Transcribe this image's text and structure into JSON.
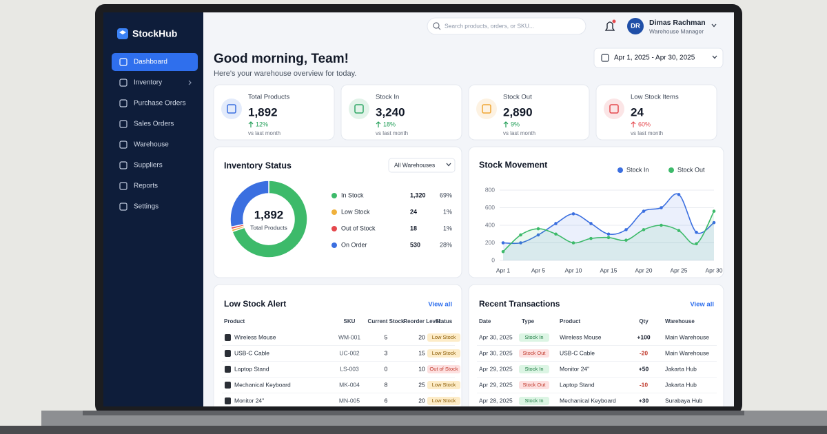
{
  "sidebar": {
    "brand": "StockHub",
    "nav": [
      "Dashboard",
      "Inventory",
      "Purchase Orders",
      "Sales Orders",
      "Warehouse",
      "Suppliers",
      "Reports",
      "Settings"
    ]
  },
  "topbar": {
    "search_placeholder": "Search products, orders, or SKU...",
    "user_initials": "DR",
    "user_name": "Dimas Rachman",
    "user_role": "Warehouse Manager",
    "date_range": "Apr 1, 2025 - Apr 30, 2025"
  },
  "greeting": {
    "title": "Good morning, Team!",
    "subtitle": "Here's your warehouse overview for today."
  },
  "kpis": [
    {
      "label": "Total Products",
      "value": "1,892",
      "change": "12%",
      "note": "vs last month",
      "accent": "#3b6fe0",
      "change_color": "#1f9d55"
    },
    {
      "label": "Stock In",
      "value": "3,240",
      "change": "18%",
      "note": "vs last month",
      "accent": "#2fa866",
      "change_color": "#1f9d55"
    },
    {
      "label": "Stock Out",
      "value": "2,890",
      "change": "9%",
      "note": "vs last month",
      "accent": "#f0a531",
      "change_color": "#1f9d55"
    },
    {
      "label": "Low Stock Items",
      "value": "24",
      "change": "60%",
      "note": "vs last month",
      "accent": "#e5484d",
      "change_color": "#e5484d"
    }
  ],
  "chart_data": [
    {
      "type": "pie",
      "title": "Inventory Status",
      "filter": "All Warehouses",
      "center_value": "1,892",
      "center_label": "Total Products",
      "categories": [
        "In Stock",
        "Low Stock",
        "Out of Stock",
        "On Order"
      ],
      "counts": [
        "1,320",
        "24",
        "18",
        "530"
      ],
      "values": [
        69,
        1,
        1,
        28
      ],
      "value_labels": [
        "69%",
        "1%",
        "1%",
        "28%"
      ],
      "colors": [
        "#3dba6a",
        "#f0b13c",
        "#e5484d",
        "#3b6fe0"
      ]
    },
    {
      "type": "line",
      "title": "Stock Movement",
      "categories": [
        "Apr 1",
        null,
        "Apr 5",
        null,
        "Apr 10",
        null,
        "Apr 15",
        null,
        "Apr 20",
        null,
        "Apr 25",
        null,
        "Apr 30"
      ],
      "series": [
        {
          "name": "Stock In",
          "color": "#3b6fe0",
          "values": [
            200,
            200,
            290,
            420,
            530,
            420,
            300,
            350,
            560,
            600,
            750,
            320,
            430
          ]
        },
        {
          "name": "Stock Out",
          "color": "#3dba6a",
          "values": [
            100,
            290,
            360,
            300,
            200,
            250,
            260,
            230,
            350,
            400,
            340,
            190,
            560
          ]
        }
      ],
      "ylim": [
        0,
        800
      ],
      "yticks": [
        0,
        200,
        400,
        600,
        800
      ],
      "grid": true
    }
  ],
  "low_stock": {
    "title": "Low Stock Alert",
    "link": "View all",
    "columns": [
      "Product",
      "SKU",
      "Current Stock",
      "Reorder Level",
      "Status"
    ],
    "rows": [
      [
        "Wireless Mouse",
        "WM-001",
        "5",
        "20",
        "Low Stock"
      ],
      [
        "USB-C Cable",
        "UC-002",
        "3",
        "15",
        "Low Stock"
      ],
      [
        "Laptop Stand",
        "LS-003",
        "0",
        "10",
        "Out of Stock"
      ],
      [
        "Mechanical Keyboard",
        "MK-004",
        "8",
        "25",
        "Low Stock"
      ],
      [
        "Monitor 24\"",
        "MN-005",
        "6",
        "20",
        "Low Stock"
      ]
    ]
  },
  "transactions": {
    "title": "Recent Transactions",
    "link": "View all",
    "columns": [
      "Date",
      "Type",
      "Product",
      "Qty",
      "Warehouse"
    ],
    "rows": [
      [
        "Apr 30, 2025",
        "Stock In",
        "Wireless Mouse",
        "+100",
        "Main Warehouse"
      ],
      [
        "Apr 30, 2025",
        "Stock Out",
        "USB-C Cable",
        "-20",
        "Main Warehouse"
      ],
      [
        "Apr 29, 2025",
        "Stock In",
        "Monitor 24\"",
        "+50",
        "Jakarta Hub"
      ],
      [
        "Apr 29, 2025",
        "Stock Out",
        "Laptop Stand",
        "-10",
        "Jakarta Hub"
      ],
      [
        "Apr 28, 2025",
        "Stock In",
        "Mechanical Keyboard",
        "+30",
        "Surabaya Hub"
      ]
    ]
  }
}
